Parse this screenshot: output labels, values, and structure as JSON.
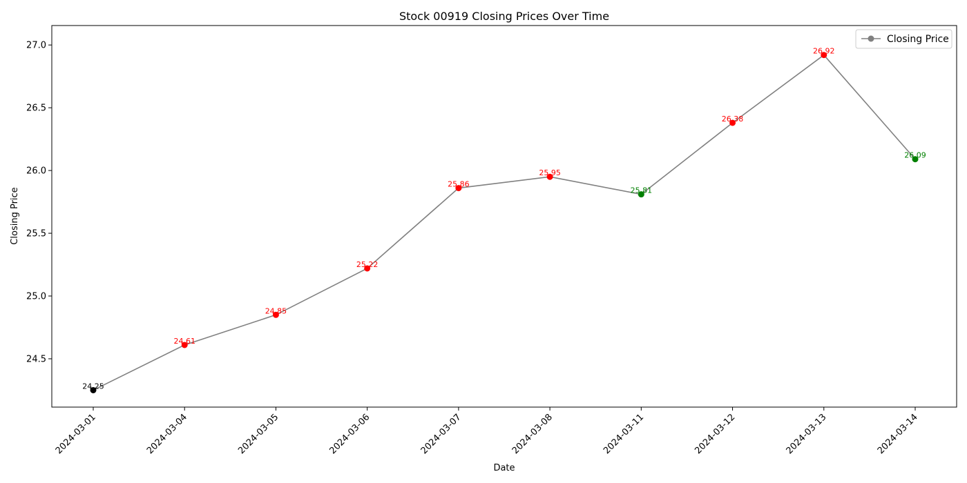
{
  "chart_data": {
    "type": "line",
    "title": "Stock 00919 Closing Prices Over Time",
    "xlabel": "Date",
    "ylabel": "Closing Price",
    "x": [
      "2024-03-01",
      "2024-03-04",
      "2024-03-05",
      "2024-03-06",
      "2024-03-07",
      "2024-03-08",
      "2024-03-11",
      "2024-03-12",
      "2024-03-13",
      "2024-03-14"
    ],
    "series": [
      {
        "name": "Closing Price",
        "values": [
          24.25,
          24.61,
          24.85,
          25.22,
          25.86,
          25.95,
          25.81,
          26.38,
          26.92,
          26.09
        ],
        "labels": [
          "24.25",
          "24.61",
          "24.85",
          "25.22",
          "25.86",
          "25.95",
          "25.81",
          "26.38",
          "26.92",
          "26.09"
        ],
        "point_colors": [
          "#000000",
          "#ff0000",
          "#ff0000",
          "#ff0000",
          "#ff0000",
          "#ff0000",
          "#008000",
          "#ff0000",
          "#ff0000",
          "#008000"
        ],
        "line_color": "#808080"
      }
    ],
    "yticks": [
      24.5,
      25.0,
      25.5,
      26.0,
      26.5,
      27.0
    ],
    "ytick_labels": [
      "24.5",
      "25.0",
      "25.5",
      "26.0",
      "26.5",
      "27.0"
    ],
    "ylim": [
      24.115,
      27.155
    ],
    "x_tick_rotation": 45,
    "grid": false,
    "legend": {
      "position": "top-right",
      "entries": [
        "Closing Price"
      ]
    }
  }
}
